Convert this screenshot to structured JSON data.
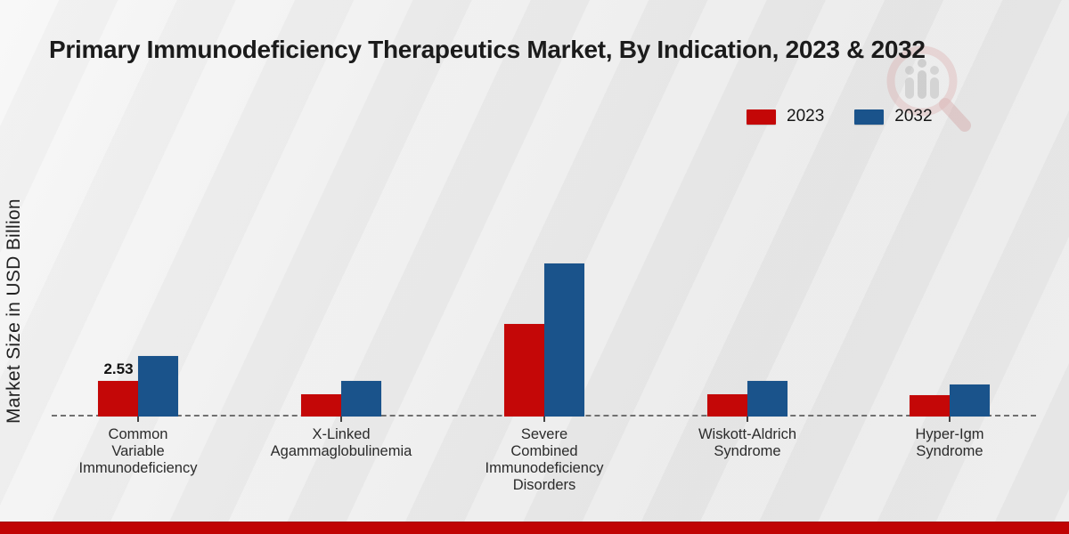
{
  "header": {
    "title": "Primary Immunodeficiency Therapeutics Market, By Indication, 2023 & 2032"
  },
  "axis": {
    "ylabel": "Market Size in USD Billion"
  },
  "legend": {
    "items": [
      {
        "label": "2023",
        "color": "#c40707"
      },
      {
        "label": "2032",
        "color": "#1a538b"
      }
    ]
  },
  "chart_data": {
    "type": "bar",
    "title": "Primary Immunodeficiency Therapeutics Market, By Indication, 2023 & 2032",
    "xlabel": "",
    "ylabel": "Market Size in USD Billion",
    "categories": [
      "Common Variable Immunodeficiency",
      "X-Linked Agammaglobulinemia",
      "Severe Combined Immunodeficiency Disorders",
      "Wiskott-Aldrich Syndrome",
      "Hyper-Igm Syndrome"
    ],
    "categories_display": [
      [
        "Common",
        "Variable",
        "Immunodeficiency"
      ],
      [
        "X-Linked",
        "Agammaglobulinemia"
      ],
      [
        "Severe",
        "Combined",
        "Immunodeficiency",
        "Disorders"
      ],
      [
        "Wiskott-Aldrich",
        "Syndrome"
      ],
      [
        "Hyper-Igm",
        "Syndrome"
      ]
    ],
    "series": [
      {
        "name": "2023",
        "color": "#c40707",
        "values": [
          2.53,
          1.6,
          6.6,
          1.6,
          1.5
        ]
      },
      {
        "name": "2032",
        "color": "#1a538b",
        "values": [
          4.3,
          2.5,
          10.9,
          2.5,
          2.3
        ]
      }
    ],
    "value_labels": [
      {
        "series_index": 0,
        "category_index": 0,
        "text": "2.53"
      }
    ],
    "ylim": [
      0,
      12
    ],
    "grid": false,
    "baseline_style": "dashed",
    "legend_position": "top-right"
  },
  "footer": {
    "accent_color": "#c00404"
  }
}
